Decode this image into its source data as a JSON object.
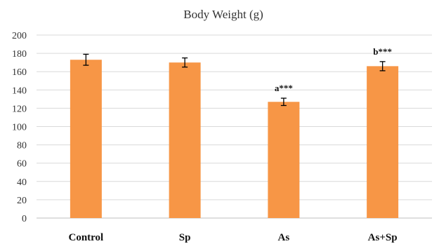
{
  "chart_data": {
    "type": "bar",
    "title": "Body Weight (g)",
    "xlabel": "",
    "ylabel": "",
    "categories": [
      "Control",
      "Sp",
      "As",
      "As+Sp"
    ],
    "values": [
      173,
      170,
      127,
      166
    ],
    "error": [
      6,
      5,
      4,
      5
    ],
    "annotations": [
      "",
      "",
      "a***",
      "b***"
    ],
    "ylim": [
      0,
      200
    ],
    "yticks": [
      0,
      20,
      40,
      60,
      80,
      100,
      120,
      140,
      160,
      180,
      200
    ],
    "grid": true,
    "legend": "none",
    "colors": {
      "bar": "#F79646",
      "grid": "#D9D9D9",
      "axis": "#BFBFBF",
      "error": "#000000"
    }
  }
}
